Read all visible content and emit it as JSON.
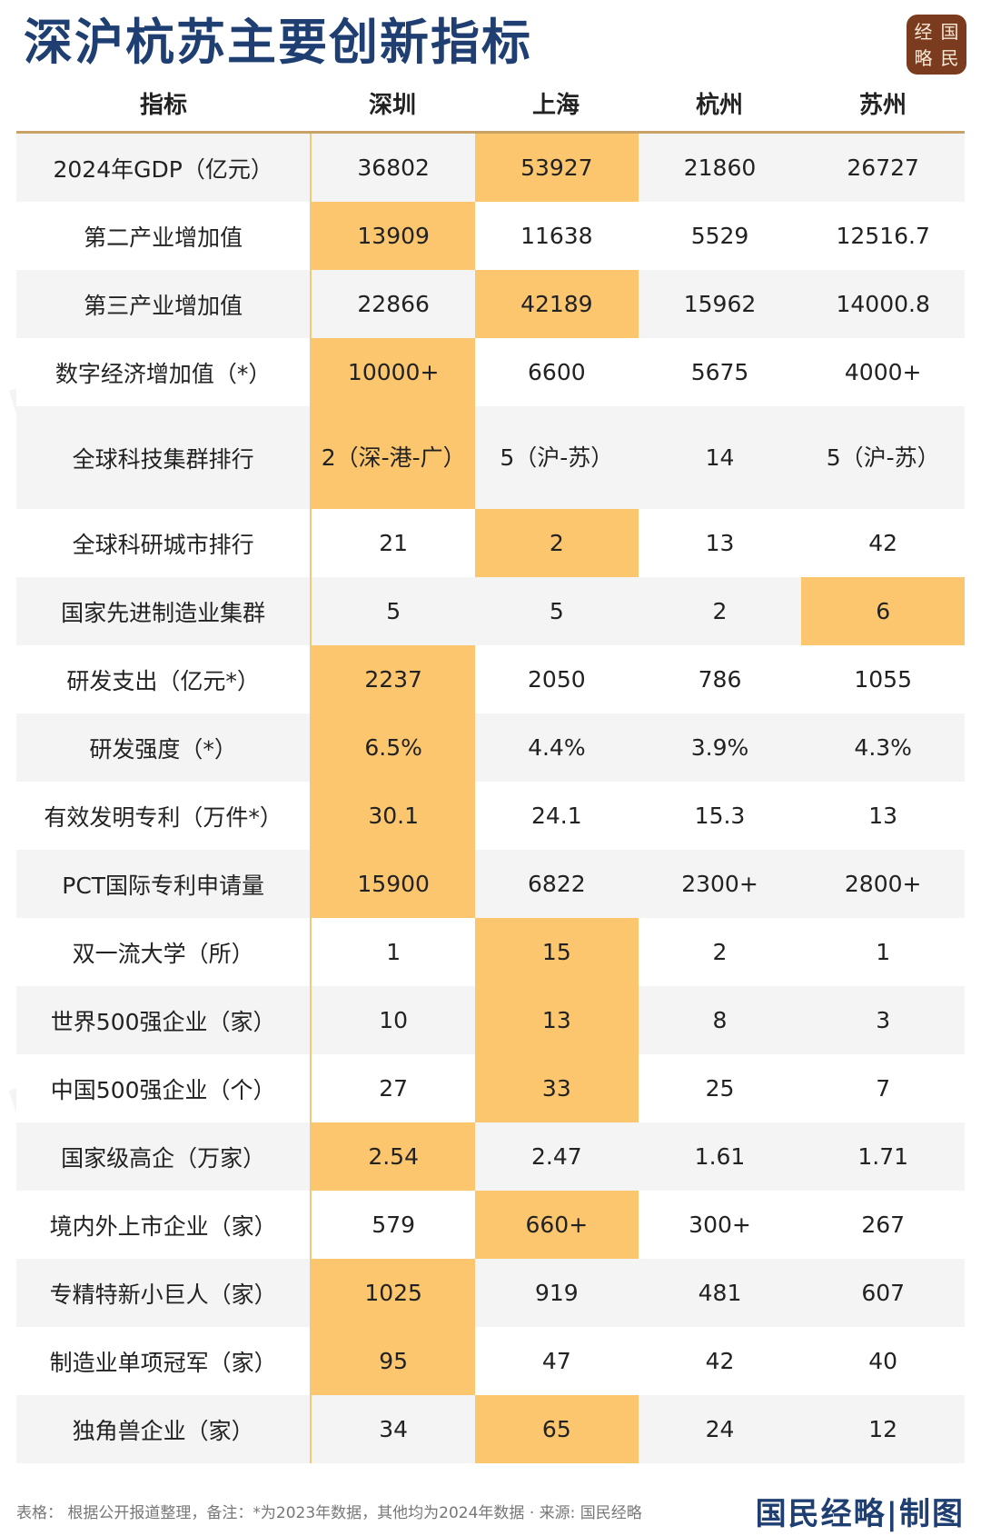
{
  "title": "深沪杭苏主要创新指标",
  "logo": [
    "经",
    "国",
    "略",
    "民"
  ],
  "columns": {
    "label": "指标",
    "cities": [
      "深圳",
      "上海",
      "杭州",
      "苏州"
    ]
  },
  "rows": [
    {
      "label": "2024年GDP（亿元）",
      "values": [
        "36802",
        "53927",
        "21860",
        "26727"
      ],
      "highlight": 1
    },
    {
      "label": "第二产业增加值",
      "values": [
        "13909",
        "11638",
        "5529",
        "12516.7"
      ],
      "highlight": 0
    },
    {
      "label": "第三产业增加值",
      "values": [
        "22866",
        "42189",
        "15962",
        "14000.8"
      ],
      "highlight": 1
    },
    {
      "label": "数字经济增加值（*）",
      "values": [
        "10000+",
        "6600",
        "5675",
        "4000+"
      ],
      "highlight": 0
    },
    {
      "label": "全球科技集群排行",
      "values": [
        "2（深-港-广）",
        "5（沪-苏）",
        "14",
        "5（沪-苏）"
      ],
      "highlight": 0,
      "tall": true
    },
    {
      "label": "全球科研城市排行",
      "values": [
        "21",
        "2",
        "13",
        "42"
      ],
      "highlight": 1
    },
    {
      "label": "国家先进制造业集群",
      "values": [
        "5",
        "5",
        "2",
        "6"
      ],
      "highlight": 3
    },
    {
      "label": "研发支出（亿元*）",
      "values": [
        "2237",
        "2050",
        "786",
        "1055"
      ],
      "highlight": 0
    },
    {
      "label": "研发强度（*）",
      "values": [
        "6.5%",
        "4.4%",
        "3.9%",
        "4.3%"
      ],
      "highlight": 0
    },
    {
      "label": "有效发明专利（万件*）",
      "values": [
        "30.1",
        "24.1",
        "15.3",
        "13"
      ],
      "highlight": 0
    },
    {
      "label": "PCT国际专利申请量",
      "values": [
        "15900",
        "6822",
        "2300+",
        "2800+"
      ],
      "highlight": 0
    },
    {
      "label": "双一流大学（所）",
      "values": [
        "1",
        "15",
        "2",
        "1"
      ],
      "highlight": 1
    },
    {
      "label": "世界500强企业（家）",
      "values": [
        "10",
        "13",
        "8",
        "3"
      ],
      "highlight": 1
    },
    {
      "label": "中国500强企业（个）",
      "values": [
        "27",
        "33",
        "25",
        "7"
      ],
      "highlight": 1
    },
    {
      "label": "国家级高企（万家）",
      "values": [
        "2.54",
        "2.47",
        "1.61",
        "1.71"
      ],
      "highlight": 0
    },
    {
      "label": "境内外上市企业（家）",
      "values": [
        "579",
        "660+",
        "300+",
        "267"
      ],
      "highlight": 1
    },
    {
      "label": "专精特新小巨人（家）",
      "values": [
        "1025",
        "919",
        "481",
        "607"
      ],
      "highlight": 0
    },
    {
      "label": "制造业单项冠军（家）",
      "values": [
        "95",
        "47",
        "42",
        "40"
      ],
      "highlight": 0
    },
    {
      "label": "独角兽企业（家）",
      "values": [
        "34",
        "65",
        "24",
        "12"
      ],
      "highlight": 1
    }
  ],
  "footer": {
    "note": "表格：  根据公开报道整理，备注：*为2023年数据，其他均为2024年数据 · 来源: 国民经略",
    "brand": "国民经略|制图"
  },
  "colors": {
    "title": "#1f3f73",
    "highlight": "#fbc66e",
    "divider": "#f2c879"
  }
}
